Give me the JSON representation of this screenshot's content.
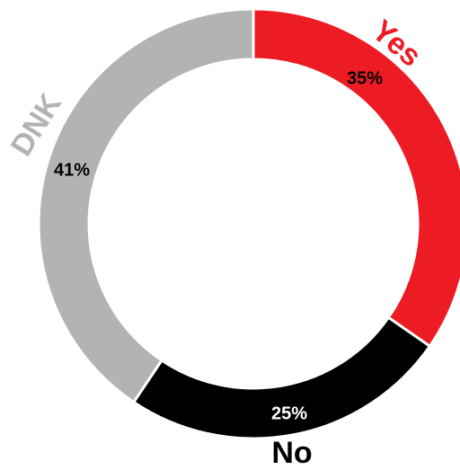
{
  "chart_data": {
    "type": "donut",
    "categories": [
      "Yes",
      "No",
      "DNK"
    ],
    "values": [
      35,
      25,
      41
    ],
    "value_labels": [
      "35%",
      "25%",
      "41%"
    ],
    "colors": [
      "#ed1c24",
      "#000000",
      "#b3b3b3"
    ],
    "label_colors": [
      "#ffffff",
      "#ffffff",
      "#ffffff"
    ]
  }
}
